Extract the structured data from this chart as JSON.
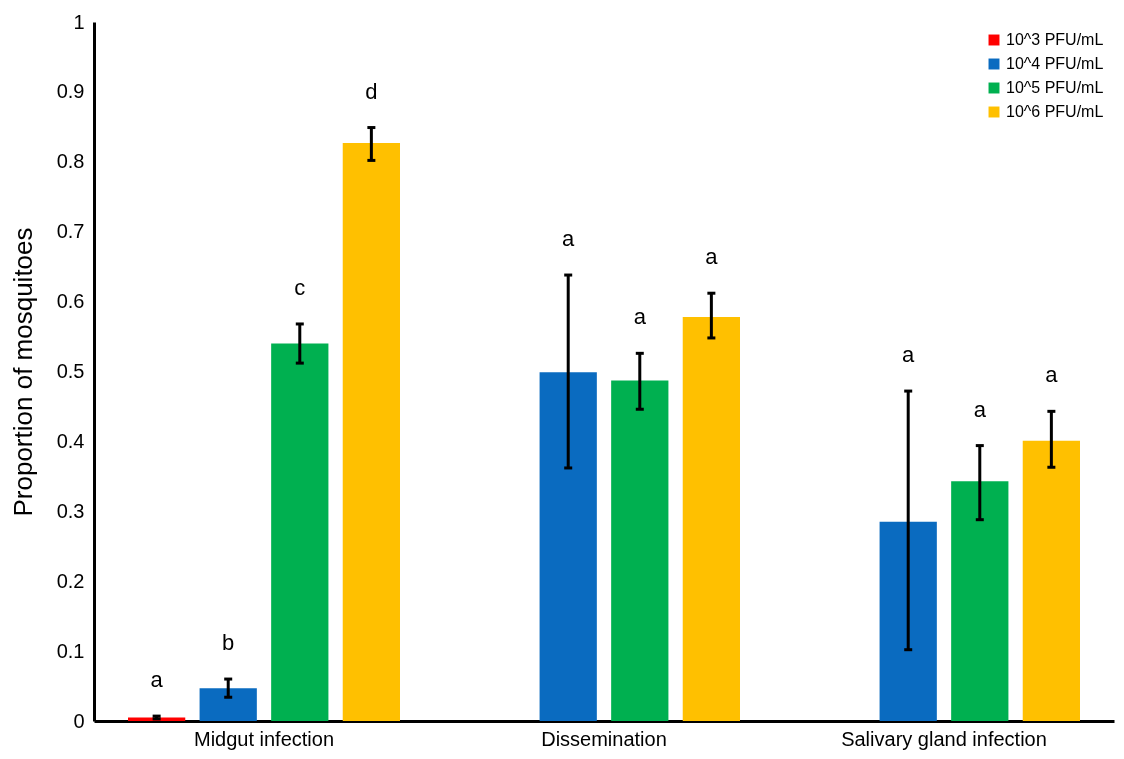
{
  "chart_data": {
    "type": "bar",
    "ylabel": "Proportion of mosquitoes",
    "categories": [
      "Midgut infection",
      "Dissemination",
      "Salivary gland infection"
    ],
    "series": [
      {
        "name": "10^3 PFU/mL",
        "color": "#ff0000",
        "values": [
          0.005,
          null,
          null
        ],
        "errors": [
          [
            0.003,
            0.007
          ],
          null,
          null
        ]
      },
      {
        "name": "10^4 PFU/mL",
        "color": "#0a6bc0",
        "values": [
          0.047,
          0.499,
          0.285
        ],
        "errors": [
          [
            0.034,
            0.06
          ],
          [
            0.362,
            0.638
          ],
          [
            0.102,
            0.472
          ]
        ]
      },
      {
        "name": "10^5 PFU/mL",
        "color": "#00b050",
        "values": [
          0.54,
          0.487,
          0.343
        ],
        "errors": [
          [
            0.512,
            0.568
          ],
          [
            0.446,
            0.526
          ],
          [
            0.288,
            0.394
          ]
        ]
      },
      {
        "name": "10^6 PFU/mL",
        "color": "#ffc000",
        "values": [
          0.827,
          0.578,
          0.401
        ],
        "errors": [
          [
            0.802,
            0.849
          ],
          [
            0.548,
            0.612
          ],
          [
            0.363,
            0.443
          ]
        ]
      }
    ],
    "annotations": [
      "a",
      "b",
      "c",
      "d",
      "a",
      "a",
      "a",
      "a",
      "a",
      "a"
    ],
    "ylim": [
      0,
      1
    ],
    "yticks": [
      0,
      0.1,
      0.2,
      0.3,
      0.4,
      0.5,
      0.6,
      0.7,
      0.8,
      0.9,
      1
    ],
    "grid": false,
    "legend": "top right"
  }
}
